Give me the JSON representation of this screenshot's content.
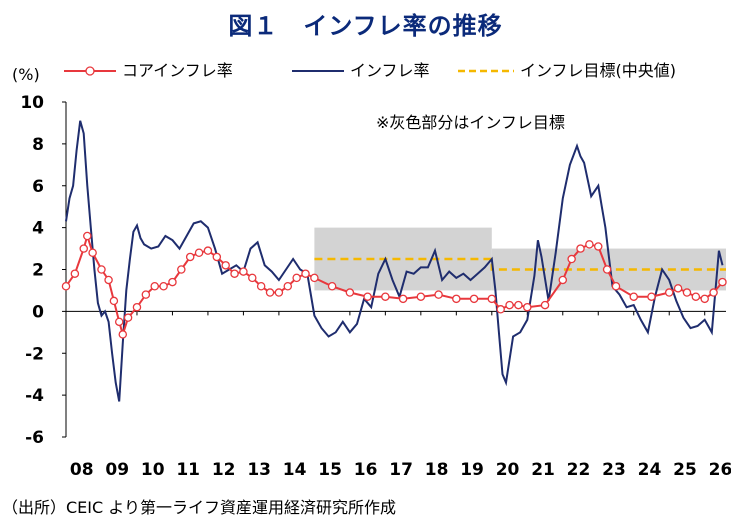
{
  "title": "図１　インフレ率の推移",
  "source": "（出所）CEIC より第一ライフ資産運用経済研究所作成",
  "chart_data": {
    "type": "line",
    "title": "図１　インフレ率の推移",
    "ylabel": "(%)",
    "xlabel": "",
    "ylim": [
      -6,
      10
    ],
    "xlim": [
      2008.0,
      2026.6
    ],
    "y_ticks": [
      10,
      8,
      6,
      4,
      2,
      0,
      -2,
      -4,
      -6
    ],
    "x_ticks": [
      "08",
      "09",
      "10",
      "11",
      "12",
      "13",
      "14",
      "15",
      "16",
      "17",
      "18",
      "19",
      "20",
      "21",
      "22",
      "23",
      "24",
      "25",
      "26"
    ],
    "annotation": "※灰色部分はインフレ目標",
    "grid": false,
    "legend_position": "top",
    "target_band": [
      {
        "x_start": 2015.0,
        "x_end": 2020.0,
        "low": 1,
        "high": 4
      },
      {
        "x_start": 2020.0,
        "x_end": 2026.6,
        "low": 1,
        "high": 3
      }
    ],
    "series": [
      {
        "name": "コアインフレ率",
        "color": "#e8383d",
        "x": [
          2008.0,
          2008.25,
          2008.5,
          2008.6,
          2008.75,
          2009.0,
          2009.2,
          2009.35,
          2009.5,
          2009.6,
          2009.75,
          2010.0,
          2010.25,
          2010.5,
          2010.75,
          2011.0,
          2011.25,
          2011.5,
          2011.75,
          2012.0,
          2012.25,
          2012.5,
          2012.75,
          2013.0,
          2013.25,
          2013.5,
          2013.75,
          2014.0,
          2014.25,
          2014.5,
          2014.75,
          2015.0,
          2015.5,
          2016.0,
          2016.5,
          2017.0,
          2017.5,
          2018.0,
          2018.5,
          2019.0,
          2019.5,
          2020.0,
          2020.25,
          2020.5,
          2020.75,
          2021.0,
          2021.5,
          2022.0,
          2022.25,
          2022.5,
          2022.75,
          2023.0,
          2023.25,
          2023.5,
          2024.0,
          2024.5,
          2025.0,
          2025.25,
          2025.5,
          2025.75,
          2026.0,
          2026.25,
          2026.5
        ],
        "values": [
          1.2,
          1.8,
          3.0,
          3.6,
          2.8,
          2.0,
          1.5,
          0.5,
          -0.5,
          -1.1,
          -0.3,
          0.2,
          0.8,
          1.2,
          1.2,
          1.4,
          2.0,
          2.6,
          2.8,
          2.9,
          2.6,
          2.2,
          1.8,
          1.9,
          1.6,
          1.2,
          0.9,
          0.9,
          1.2,
          1.6,
          1.8,
          1.6,
          1.2,
          0.9,
          0.7,
          0.7,
          0.6,
          0.7,
          0.8,
          0.6,
          0.6,
          0.6,
          0.1,
          0.3,
          0.3,
          0.2,
          0.3,
          1.5,
          2.5,
          3.0,
          3.2,
          3.1,
          2.0,
          1.2,
          0.7,
          0.7,
          0.9,
          1.1,
          0.9,
          0.7,
          0.6,
          0.9,
          1.4
        ]
      },
      {
        "name": "インフレ率",
        "color": "#1f2d6e",
        "x": [
          2008.0,
          2008.1,
          2008.2,
          2008.3,
          2008.4,
          2008.5,
          2008.6,
          2008.7,
          2008.8,
          2008.9,
          2009.0,
          2009.1,
          2009.2,
          2009.3,
          2009.4,
          2009.5,
          2009.6,
          2009.7,
          2009.8,
          2009.9,
          2010.0,
          2010.1,
          2010.2,
          2010.4,
          2010.6,
          2010.8,
          2011.0,
          2011.2,
          2011.4,
          2011.6,
          2011.8,
          2012.0,
          2012.2,
          2012.4,
          2012.6,
          2012.8,
          2013.0,
          2013.2,
          2013.4,
          2013.6,
          2013.8,
          2014.0,
          2014.2,
          2014.4,
          2014.6,
          2014.8,
          2015.0,
          2015.2,
          2015.4,
          2015.6,
          2015.8,
          2016.0,
          2016.2,
          2016.4,
          2016.6,
          2016.8,
          2017.0,
          2017.2,
          2017.4,
          2017.6,
          2017.8,
          2018.0,
          2018.2,
          2018.4,
          2018.6,
          2018.8,
          2019.0,
          2019.2,
          2019.4,
          2019.6,
          2019.8,
          2020.0,
          2020.1,
          2020.2,
          2020.3,
          2020.4,
          2020.6,
          2020.8,
          2021.0,
          2021.2,
          2021.3,
          2021.4,
          2021.6,
          2021.8,
          2022.0,
          2022.2,
          2022.4,
          2022.5,
          2022.6,
          2022.8,
          2023.0,
          2023.1,
          2023.2,
          2023.3,
          2023.4,
          2023.6,
          2023.8,
          2024.0,
          2024.2,
          2024.4,
          2024.6,
          2024.8,
          2025.0,
          2025.2,
          2025.4,
          2025.6,
          2025.8,
          2026.0,
          2026.2,
          2026.4,
          2026.5
        ],
        "values": [
          4.3,
          5.4,
          6.0,
          7.7,
          9.1,
          8.5,
          6.0,
          4.0,
          2.0,
          0.4,
          -0.2,
          0.0,
          -0.5,
          -2.0,
          -3.4,
          -4.3,
          -1.5,
          1.0,
          2.5,
          3.8,
          4.1,
          3.5,
          3.2,
          3.0,
          3.1,
          3.6,
          3.4,
          3.0,
          3.6,
          4.2,
          4.3,
          4.0,
          3.0,
          1.8,
          2.0,
          2.2,
          1.9,
          3.0,
          3.3,
          2.2,
          1.9,
          1.5,
          2.0,
          2.5,
          2.0,
          1.8,
          -0.2,
          -0.8,
          -1.2,
          -1.0,
          -0.5,
          -1.0,
          -0.6,
          0.6,
          0.2,
          1.8,
          2.5,
          1.5,
          0.7,
          1.9,
          1.8,
          2.1,
          2.1,
          2.9,
          1.5,
          1.9,
          1.6,
          1.8,
          1.5,
          1.8,
          2.1,
          2.5,
          1.0,
          -1.0,
          -3.0,
          -3.4,
          -1.2,
          -1.0,
          -0.4,
          1.7,
          3.4,
          2.6,
          0.5,
          2.8,
          5.4,
          7.0,
          7.9,
          7.4,
          7.1,
          5.5,
          6.0,
          5.0,
          4.0,
          2.6,
          1.2,
          0.8,
          0.2,
          0.3,
          -0.4,
          -1.0,
          0.7,
          2.0,
          1.5,
          0.5,
          -0.3,
          -0.8,
          -0.7,
          -0.4,
          -1.0,
          2.9,
          2.2
        ]
      },
      {
        "name": "インフレ目標(中央値)",
        "color": "#f5b800",
        "x": [
          2015.0,
          2020.0,
          2020.0,
          2026.6
        ],
        "values": [
          2.5,
          2.5,
          2.0,
          2.0
        ]
      }
    ]
  }
}
